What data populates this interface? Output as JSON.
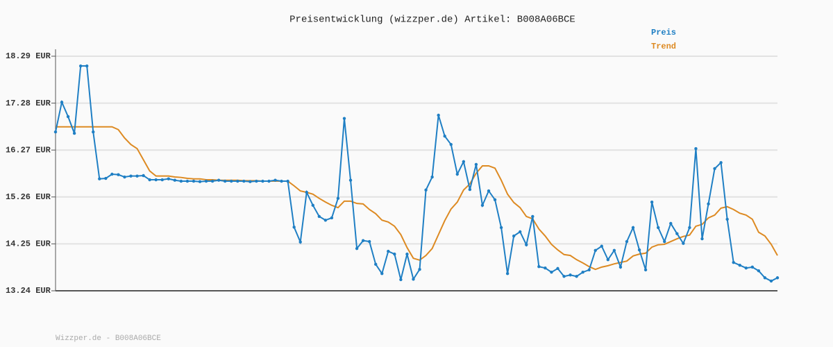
{
  "chart_data": {
    "type": "line",
    "title": "Preisentwicklung (wizzper.de) Artikel: B008A06BCE",
    "footer": "Wizzper.de - B008A06BCE",
    "ylim": [
      13.24,
      18.29
    ],
    "yticks": [
      {
        "value": 13.24,
        "label": "13.24 EUR"
      },
      {
        "value": 14.25,
        "label": "14.25 EUR"
      },
      {
        "value": 15.26,
        "label": "15.26 EUR"
      },
      {
        "value": 16.27,
        "label": "16.27 EUR"
      },
      {
        "value": 17.28,
        "label": "17.28 EUR"
      },
      {
        "value": 18.29,
        "label": "18.29 EUR"
      }
    ],
    "grid": true,
    "legend": "top-right",
    "series": [
      {
        "name": "Preis",
        "color": "#1f7fc4",
        "markers": true,
        "values": [
          16.66,
          17.3,
          16.99,
          16.63,
          18.08,
          18.08,
          16.66,
          15.65,
          15.66,
          15.75,
          15.74,
          15.69,
          15.71,
          15.71,
          15.72,
          15.63,
          15.63,
          15.63,
          15.65,
          15.62,
          15.6,
          15.6,
          15.6,
          15.59,
          15.6,
          15.6,
          15.62,
          15.6,
          15.6,
          15.6,
          15.6,
          15.59,
          15.6,
          15.6,
          15.6,
          15.62,
          15.6,
          15.6,
          14.61,
          14.29,
          15.36,
          15.08,
          14.84,
          14.76,
          14.81,
          15.23,
          16.95,
          15.62,
          14.15,
          14.32,
          14.3,
          13.81,
          13.61,
          14.09,
          14.03,
          13.48,
          14.03,
          13.49,
          13.7,
          15.41,
          15.69,
          17.02,
          16.57,
          16.39,
          15.75,
          16.02,
          15.42,
          15.96,
          15.08,
          15.39,
          15.2,
          14.6,
          13.61,
          14.42,
          14.51,
          14.23,
          14.84,
          13.76,
          13.73,
          13.64,
          13.72,
          13.55,
          13.58,
          13.55,
          13.64,
          13.69,
          14.11,
          14.2,
          13.91,
          14.11,
          13.75,
          14.3,
          14.6,
          14.12,
          13.69,
          15.15,
          14.6,
          14.3,
          14.69,
          14.47,
          14.26,
          14.6,
          16.3,
          14.36,
          15.11,
          15.87,
          16.0,
          14.78,
          13.85,
          13.79,
          13.73,
          13.75,
          13.67,
          13.52,
          13.45,
          13.52
        ]
      },
      {
        "name": "Trend",
        "color": "#dd8a22",
        "markers": false,
        "values": [
          16.77,
          16.77,
          16.77,
          16.77,
          16.77,
          16.77,
          16.77,
          16.77,
          16.77,
          16.77,
          16.71,
          16.53,
          16.39,
          16.3,
          16.06,
          15.82,
          15.71,
          15.71,
          15.71,
          15.69,
          15.68,
          15.66,
          15.65,
          15.65,
          15.63,
          15.63,
          15.62,
          15.62,
          15.62,
          15.62,
          15.61,
          15.61,
          15.61,
          15.6,
          15.6,
          15.6,
          15.6,
          15.6,
          15.5,
          15.39,
          15.36,
          15.32,
          15.23,
          15.15,
          15.08,
          15.03,
          15.17,
          15.17,
          15.12,
          15.11,
          14.99,
          14.9,
          14.76,
          14.72,
          14.63,
          14.45,
          14.17,
          13.94,
          13.9,
          14.0,
          14.15,
          14.45,
          14.75,
          15.0,
          15.15,
          15.41,
          15.54,
          15.77,
          15.93,
          15.93,
          15.88,
          15.62,
          15.32,
          15.14,
          15.03,
          14.84,
          14.79,
          14.57,
          14.42,
          14.24,
          14.12,
          14.02,
          14.0,
          13.91,
          13.84,
          13.76,
          13.7,
          13.75,
          13.78,
          13.82,
          13.85,
          13.88,
          13.99,
          14.03,
          14.05,
          14.18,
          14.23,
          14.24,
          14.3,
          14.36,
          14.41,
          14.44,
          14.63,
          14.67,
          14.81,
          14.87,
          15.02,
          15.05,
          14.99,
          14.91,
          14.87,
          14.78,
          14.5,
          14.42,
          14.24,
          14.0
        ]
      }
    ]
  }
}
